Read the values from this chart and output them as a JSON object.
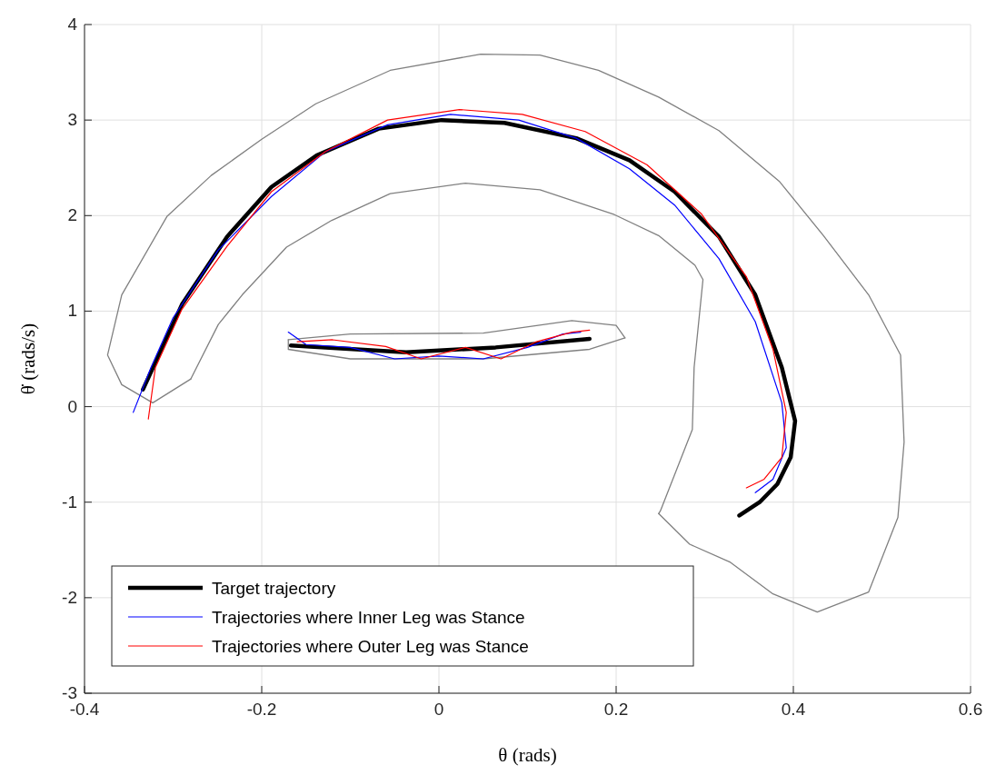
{
  "chart_data": {
    "type": "line",
    "xlabel": "θ (rads)",
    "ylabel": "θ̇ (rads/s)",
    "xlim": [
      -0.4,
      0.6
    ],
    "ylim": [
      -3,
      4
    ],
    "xticks": [
      -0.4,
      -0.2,
      0,
      0.2,
      0.4,
      0.6
    ],
    "yticks": [
      -3,
      -2,
      -1,
      0,
      1,
      2,
      3,
      4
    ],
    "grid": true,
    "legend": "bottom left",
    "line_style": "solid",
    "marker": "none",
    "series": [
      {
        "color": "#808080",
        "x": [
          -0.28,
          -0.323,
          -0.358,
          -0.374,
          -0.358,
          -0.307,
          -0.257,
          -0.2,
          -0.139,
          -0.055,
          0.047,
          0.114,
          0.18,
          0.248,
          0.316,
          0.384,
          0.434,
          0.485,
          0.521,
          0.525,
          0.518,
          0.485,
          0.427,
          0.377,
          0.329,
          0.283,
          0.248
        ],
        "values": [
          0.29,
          0.04,
          0.23,
          0.54,
          1.17,
          1.99,
          2.42,
          2.8,
          3.17,
          3.52,
          3.69,
          3.68,
          3.52,
          3.24,
          2.89,
          2.36,
          1.79,
          1.17,
          0.54,
          -0.37,
          -1.16,
          -1.94,
          -2.15,
          -1.96,
          -1.63,
          -1.44,
          -1.12
        ]
      },
      {
        "color": "#808080",
        "x": [
          -0.28,
          -0.249,
          -0.222,
          -0.172,
          -0.121,
          -0.055,
          0.03,
          0.114,
          0.198,
          0.248,
          0.289,
          0.298,
          0.288,
          0.286,
          0.25,
          0.248
        ],
        "values": [
          0.29,
          0.86,
          1.17,
          1.67,
          1.95,
          2.23,
          2.34,
          2.27,
          2.01,
          1.79,
          1.48,
          1.33,
          0.41,
          -0.24,
          -1.09,
          -1.12
        ]
      },
      {
        "color": "#808080",
        "x": [
          -0.17,
          -0.1,
          0.05,
          0.15,
          0.2,
          0.21
        ],
        "values": [
          0.7,
          0.76,
          0.77,
          0.9,
          0.85,
          0.72
        ]
      },
      {
        "color": "#808080",
        "x": [
          -0.17,
          -0.17,
          -0.1,
          0.05,
          0.17,
          0.21
        ],
        "values": [
          0.7,
          0.6,
          0.5,
          0.5,
          0.6,
          0.72
        ]
      },
      {
        "name": "Target trajectory",
        "color": "#000000",
        "x": [
          -0.334,
          -0.29,
          -0.239,
          -0.189,
          -0.138,
          -0.068,
          0.003,
          0.074,
          0.155,
          0.215,
          0.266,
          0.316,
          0.357,
          0.387,
          0.402,
          0.397,
          0.382,
          0.362,
          0.339,
          0,
          -0.167,
          -0.037,
          0.064,
          0.17
        ],
        "values": [
          0.18,
          1.07,
          1.78,
          2.3,
          2.63,
          2.91,
          3.0,
          2.97,
          2.81,
          2.58,
          2.25,
          1.78,
          1.17,
          0.41,
          -0.15,
          -0.53,
          -0.81,
          -1.0,
          -1.14,
          null,
          0.64,
          0.57,
          0.62,
          0.71
        ]
      },
      {
        "name": "Trajectories where Inner Leg was Stance",
        "color": "#0000ff",
        "x": [
          -0.345,
          -0.325,
          -0.3,
          -0.249,
          -0.189,
          -0.128,
          -0.058,
          0.013,
          0.09,
          0.155,
          0.215,
          0.266,
          0.316,
          0.357,
          0.387,
          0.392,
          0.377,
          0.357,
          0,
          -0.17,
          -0.15,
          -0.1,
          -0.05,
          0.0,
          0.05,
          0.1,
          0.14,
          0.16
        ],
        "values": [
          -0.06,
          0.41,
          0.93,
          1.64,
          2.2,
          2.67,
          2.95,
          3.06,
          3.0,
          2.81,
          2.49,
          2.11,
          1.55,
          0.89,
          0.04,
          -0.43,
          -0.76,
          -0.9,
          null,
          0.78,
          0.65,
          0.62,
          0.5,
          0.53,
          0.5,
          0.62,
          0.76,
          0.78
        ]
      },
      {
        "name": "Trajectories where Outer Leg was Stance",
        "color": "#ff0000",
        "x": [
          -0.328,
          -0.32,
          -0.29,
          -0.239,
          -0.189,
          -0.128,
          -0.058,
          0.023,
          0.094,
          0.165,
          0.235,
          0.296,
          0.347,
          0.377,
          0.392,
          0.387,
          0.367,
          0.347,
          0,
          -0.16,
          -0.12,
          -0.06,
          -0.02,
          0.03,
          0.07,
          0.11,
          0.15,
          0.17
        ],
        "values": [
          -0.13,
          0.41,
          1.02,
          1.68,
          2.25,
          2.67,
          3.0,
          3.11,
          3.06,
          2.88,
          2.53,
          2.02,
          1.36,
          0.6,
          -0.06,
          -0.53,
          -0.76,
          -0.85,
          null,
          0.68,
          0.7,
          0.63,
          0.5,
          0.62,
          0.5,
          0.68,
          0.78,
          0.8
        ]
      }
    ]
  }
}
